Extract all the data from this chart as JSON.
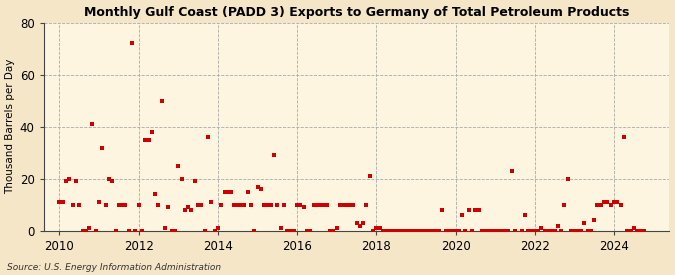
{
  "title": "Monthly Gulf Coast (PADD 3) Exports to Germany of Total Petroleum Products",
  "ylabel": "Thousand Barrels per Day",
  "source": "Source: U.S. Energy Information Administration",
  "background_color": "#f5e6c8",
  "plot_bg_color": "#fdf5e0",
  "marker_color": "#cc0000",
  "ylim": [
    0,
    80
  ],
  "yticks": [
    0,
    20,
    40,
    60,
    80
  ],
  "xlim_start": 2009.6,
  "xlim_end": 2025.4,
  "xticks": [
    2010,
    2012,
    2014,
    2016,
    2018,
    2020,
    2022,
    2024
  ],
  "data": [
    [
      2010.0,
      11
    ],
    [
      2010.083,
      11
    ],
    [
      2010.167,
      19
    ],
    [
      2010.25,
      20
    ],
    [
      2010.333,
      10
    ],
    [
      2010.417,
      19
    ],
    [
      2010.5,
      10
    ],
    [
      2010.583,
      0
    ],
    [
      2010.667,
      0
    ],
    [
      2010.75,
      1
    ],
    [
      2010.833,
      41
    ],
    [
      2010.917,
      0
    ],
    [
      2011.0,
      11
    ],
    [
      2011.083,
      32
    ],
    [
      2011.167,
      10
    ],
    [
      2011.25,
      20
    ],
    [
      2011.333,
      19
    ],
    [
      2011.417,
      0
    ],
    [
      2011.5,
      10
    ],
    [
      2011.583,
      10
    ],
    [
      2011.667,
      10
    ],
    [
      2011.75,
      0
    ],
    [
      2011.833,
      72
    ],
    [
      2011.917,
      0
    ],
    [
      2012.0,
      10
    ],
    [
      2012.083,
      0
    ],
    [
      2012.167,
      35
    ],
    [
      2012.25,
      35
    ],
    [
      2012.333,
      38
    ],
    [
      2012.417,
      14
    ],
    [
      2012.5,
      10
    ],
    [
      2012.583,
      50
    ],
    [
      2012.667,
      1
    ],
    [
      2012.75,
      9
    ],
    [
      2012.833,
      0
    ],
    [
      2012.917,
      0
    ],
    [
      2013.0,
      25
    ],
    [
      2013.083,
      20
    ],
    [
      2013.167,
      8
    ],
    [
      2013.25,
      9
    ],
    [
      2013.333,
      8
    ],
    [
      2013.417,
      19
    ],
    [
      2013.5,
      10
    ],
    [
      2013.583,
      10
    ],
    [
      2013.667,
      0
    ],
    [
      2013.75,
      36
    ],
    [
      2013.833,
      11
    ],
    [
      2013.917,
      0
    ],
    [
      2014.0,
      1
    ],
    [
      2014.083,
      10
    ],
    [
      2014.167,
      15
    ],
    [
      2014.25,
      15
    ],
    [
      2014.333,
      15
    ],
    [
      2014.417,
      10
    ],
    [
      2014.5,
      10
    ],
    [
      2014.583,
      10
    ],
    [
      2014.667,
      10
    ],
    [
      2014.75,
      15
    ],
    [
      2014.833,
      10
    ],
    [
      2014.917,
      0
    ],
    [
      2015.0,
      17
    ],
    [
      2015.083,
      16
    ],
    [
      2015.167,
      10
    ],
    [
      2015.25,
      10
    ],
    [
      2015.333,
      10
    ],
    [
      2015.417,
      29
    ],
    [
      2015.5,
      10
    ],
    [
      2015.583,
      1
    ],
    [
      2015.667,
      10
    ],
    [
      2015.75,
      0
    ],
    [
      2015.833,
      0
    ],
    [
      2015.917,
      0
    ],
    [
      2016.0,
      10
    ],
    [
      2016.083,
      10
    ],
    [
      2016.167,
      9
    ],
    [
      2016.25,
      0
    ],
    [
      2016.333,
      0
    ],
    [
      2016.417,
      10
    ],
    [
      2016.5,
      10
    ],
    [
      2016.583,
      10
    ],
    [
      2016.667,
      10
    ],
    [
      2016.75,
      10
    ],
    [
      2016.833,
      0
    ],
    [
      2016.917,
      0
    ],
    [
      2017.0,
      1
    ],
    [
      2017.083,
      10
    ],
    [
      2017.167,
      10
    ],
    [
      2017.25,
      10
    ],
    [
      2017.333,
      10
    ],
    [
      2017.417,
      10
    ],
    [
      2017.5,
      3
    ],
    [
      2017.583,
      2
    ],
    [
      2017.667,
      3
    ],
    [
      2017.75,
      10
    ],
    [
      2017.833,
      21
    ],
    [
      2017.917,
      0
    ],
    [
      2018.0,
      1
    ],
    [
      2018.083,
      1
    ],
    [
      2018.167,
      0
    ],
    [
      2018.25,
      0
    ],
    [
      2018.333,
      0
    ],
    [
      2018.417,
      0
    ],
    [
      2018.5,
      0
    ],
    [
      2018.583,
      0
    ],
    [
      2018.667,
      0
    ],
    [
      2018.75,
      0
    ],
    [
      2018.833,
      0
    ],
    [
      2018.917,
      0
    ],
    [
      2019.0,
      0
    ],
    [
      2019.083,
      0
    ],
    [
      2019.167,
      0
    ],
    [
      2019.25,
      0
    ],
    [
      2019.333,
      0
    ],
    [
      2019.417,
      0
    ],
    [
      2019.5,
      0
    ],
    [
      2019.583,
      0
    ],
    [
      2019.667,
      8
    ],
    [
      2019.75,
      0
    ],
    [
      2019.833,
      0
    ],
    [
      2019.917,
      0
    ],
    [
      2020.0,
      0
    ],
    [
      2020.083,
      0
    ],
    [
      2020.167,
      6
    ],
    [
      2020.25,
      0
    ],
    [
      2020.333,
      8
    ],
    [
      2020.417,
      0
    ],
    [
      2020.5,
      8
    ],
    [
      2020.583,
      8
    ],
    [
      2020.667,
      0
    ],
    [
      2020.75,
      0
    ],
    [
      2020.833,
      0
    ],
    [
      2020.917,
      0
    ],
    [
      2021.0,
      0
    ],
    [
      2021.083,
      0
    ],
    [
      2021.167,
      0
    ],
    [
      2021.25,
      0
    ],
    [
      2021.333,
      0
    ],
    [
      2021.417,
      23
    ],
    [
      2021.5,
      0
    ],
    [
      2021.667,
      0
    ],
    [
      2021.75,
      6
    ],
    [
      2021.833,
      0
    ],
    [
      2021.917,
      0
    ],
    [
      2022.0,
      0
    ],
    [
      2022.083,
      0
    ],
    [
      2022.167,
      1
    ],
    [
      2022.25,
      0
    ],
    [
      2022.333,
      0
    ],
    [
      2022.417,
      0
    ],
    [
      2022.5,
      0
    ],
    [
      2022.583,
      2
    ],
    [
      2022.667,
      0
    ],
    [
      2022.75,
      10
    ],
    [
      2022.833,
      20
    ],
    [
      2022.917,
      0
    ],
    [
      2023.0,
      0
    ],
    [
      2023.083,
      0
    ],
    [
      2023.167,
      0
    ],
    [
      2023.25,
      3
    ],
    [
      2023.333,
      0
    ],
    [
      2023.417,
      0
    ],
    [
      2023.5,
      4
    ],
    [
      2023.583,
      10
    ],
    [
      2023.667,
      10
    ],
    [
      2023.75,
      11
    ],
    [
      2023.833,
      11
    ],
    [
      2023.917,
      10
    ],
    [
      2024.0,
      11
    ],
    [
      2024.083,
      11
    ],
    [
      2024.167,
      10
    ],
    [
      2024.25,
      36
    ],
    [
      2024.333,
      0
    ],
    [
      2024.417,
      0
    ],
    [
      2024.5,
      1
    ],
    [
      2024.583,
      0
    ],
    [
      2024.667,
      0
    ],
    [
      2024.75,
      0
    ]
  ]
}
